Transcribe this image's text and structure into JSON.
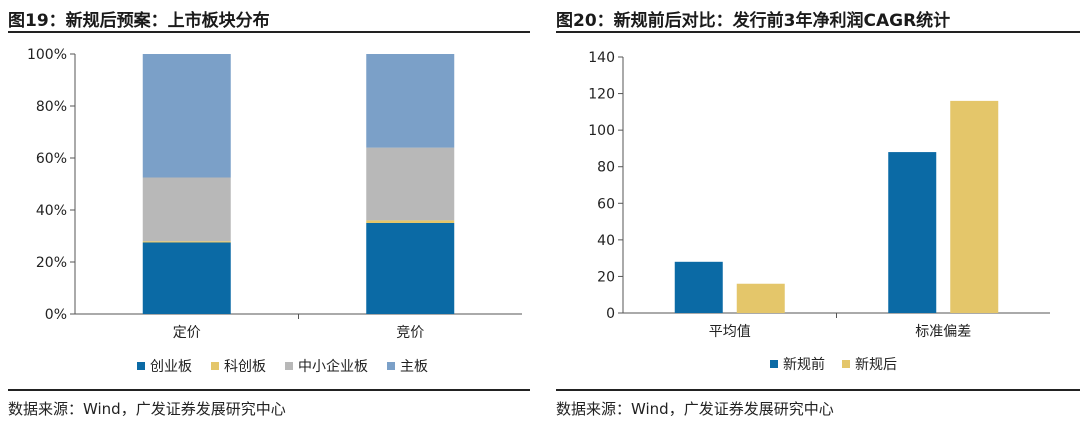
{
  "left": {
    "title": "图19：新规后预案：上市板块分布",
    "source": "数据来源：Wind，广发证券发展研究中心"
  },
  "right": {
    "title": "图20：新规前后对比：发行前3年净利润CAGR统计",
    "source": "数据来源：Wind，广发证券发展研究中心"
  },
  "chart_data": [
    {
      "type": "bar",
      "stacked": true,
      "categories": [
        "定价",
        "竞价"
      ],
      "series": [
        {
          "name": "创业板",
          "color": "#0b6aa5",
          "values": [
            27.5,
            35
          ]
        },
        {
          "name": "科创板",
          "color": "#e4c66a",
          "values": [
            0.5,
            1
          ]
        },
        {
          "name": "中小企业板",
          "color": "#b8b8b8",
          "values": [
            24.5,
            28
          ]
        },
        {
          "name": "主板",
          "color": "#7ba0c8",
          "values": [
            47.5,
            36
          ]
        }
      ],
      "ylim": [
        0,
        100
      ],
      "yticks": [
        "0%",
        "20%",
        "40%",
        "60%",
        "80%",
        "100%"
      ],
      "legend": "bottom",
      "grid": false
    },
    {
      "type": "bar",
      "categories": [
        "平均值",
        "标准偏差"
      ],
      "series": [
        {
          "name": "新规前",
          "color": "#0b6aa5",
          "values": [
            28,
            88
          ]
        },
        {
          "name": "新规后",
          "color": "#e4c66a",
          "values": [
            16,
            116
          ]
        }
      ],
      "ylim": [
        0,
        140
      ],
      "yticks": [
        "0",
        "20",
        "40",
        "60",
        "80",
        "100",
        "120",
        "140"
      ],
      "legend": "bottom",
      "grid": false
    }
  ]
}
